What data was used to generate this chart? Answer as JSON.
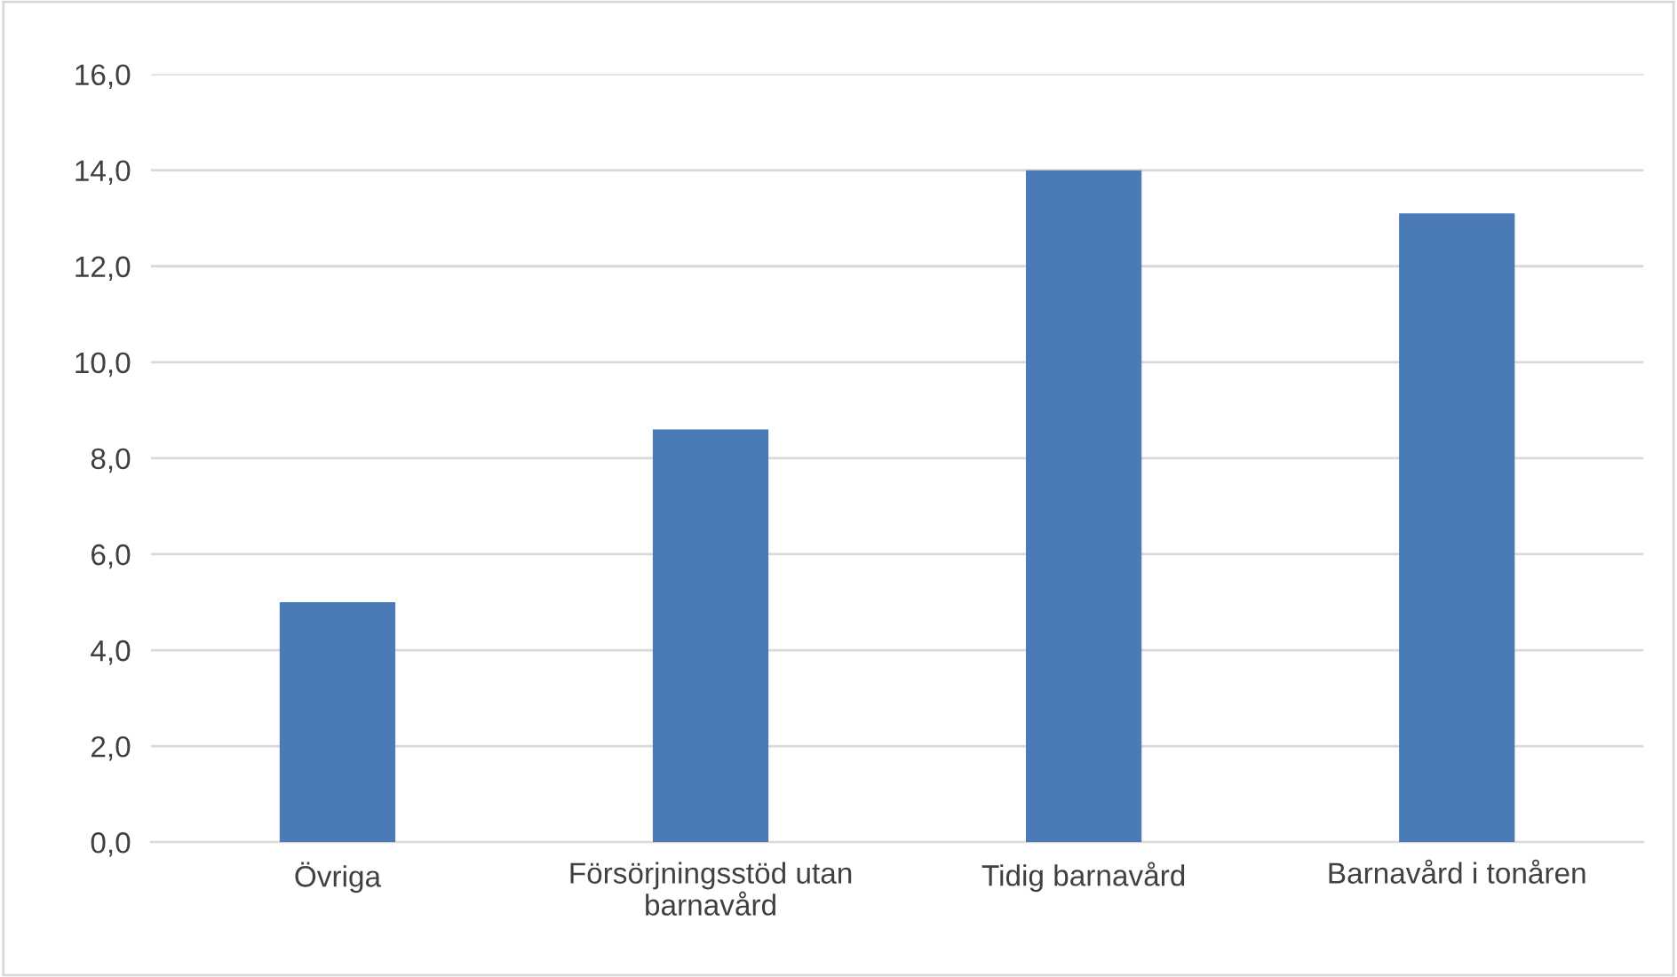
{
  "chart_data": {
    "type": "bar",
    "categories": [
      "Övriga",
      "Försörjningsstöd utan\nbarnavård",
      "Tidig barnavård",
      "Barnavård i tonåren"
    ],
    "values": [
      5.0,
      8.6,
      14.0,
      13.1
    ],
    "color": "#4a7bb7",
    "ylim": [
      0,
      16
    ],
    "yticks": [
      {
        "value": 0,
        "label": "0,0"
      },
      {
        "value": 2,
        "label": "2,0"
      },
      {
        "value": 4,
        "label": "4,0"
      },
      {
        "value": 6,
        "label": "6,0"
      },
      {
        "value": 8,
        "label": "8,0"
      },
      {
        "value": 10,
        "label": "10,0"
      },
      {
        "value": 12,
        "label": "12,0"
      },
      {
        "value": 14,
        "label": "14,0"
      },
      {
        "value": 16,
        "label": "16,0"
      }
    ],
    "grid": "y",
    "legend": false
  }
}
